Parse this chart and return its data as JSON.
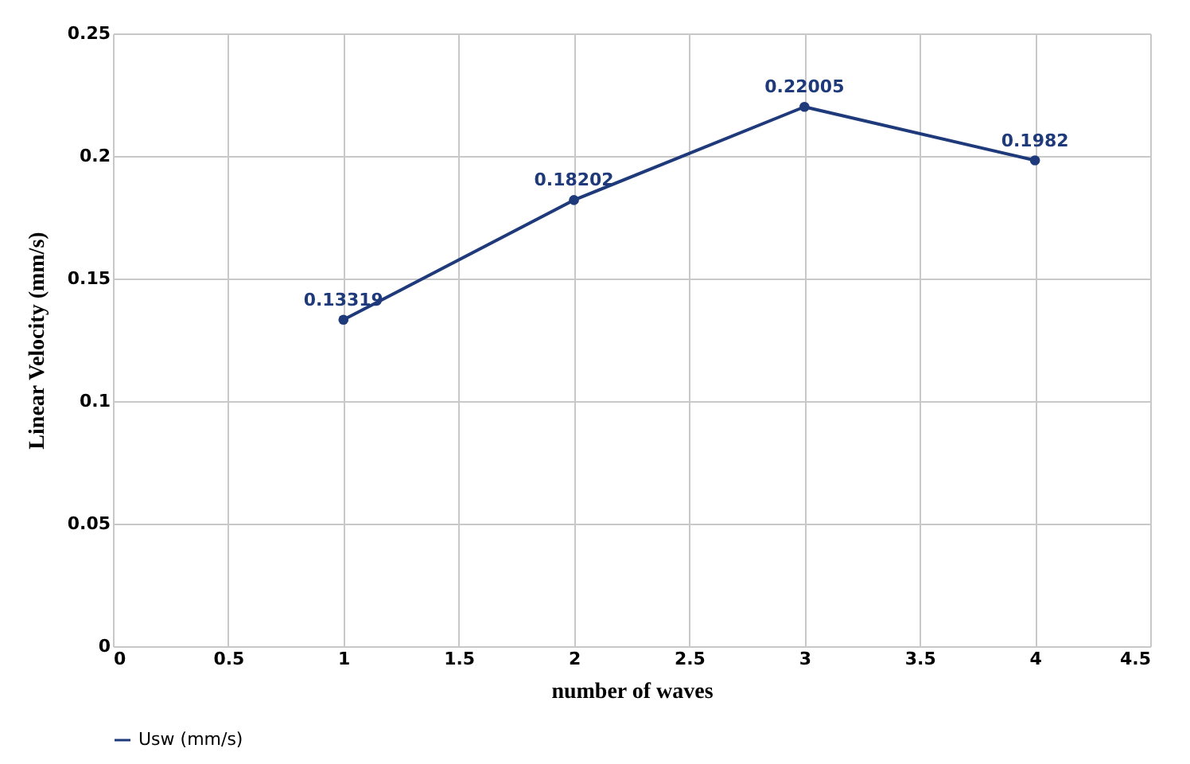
{
  "chart_data": {
    "type": "line",
    "xlabel": "number of waves",
    "ylabel": "Linear Velocity (mm/s)",
    "x": [
      1,
      2,
      3,
      4
    ],
    "series": [
      {
        "name": "Usw (mm/s)",
        "color": "#1f3a7a",
        "values": [
          0.13319,
          0.18202,
          0.22005,
          0.1982
        ]
      }
    ],
    "xlim": [
      0,
      4.5
    ],
    "xticks": [
      0,
      0.5,
      1,
      1.5,
      2,
      2.5,
      3,
      3.5,
      4,
      4.5
    ],
    "ylim": [
      0,
      0.25
    ],
    "yticks": [
      0,
      0.05,
      0.1,
      0.15,
      0.2,
      0.25
    ],
    "grid": true,
    "legend": "bottom",
    "marker": "circle",
    "line_style": "solid",
    "data_labels": true
  }
}
